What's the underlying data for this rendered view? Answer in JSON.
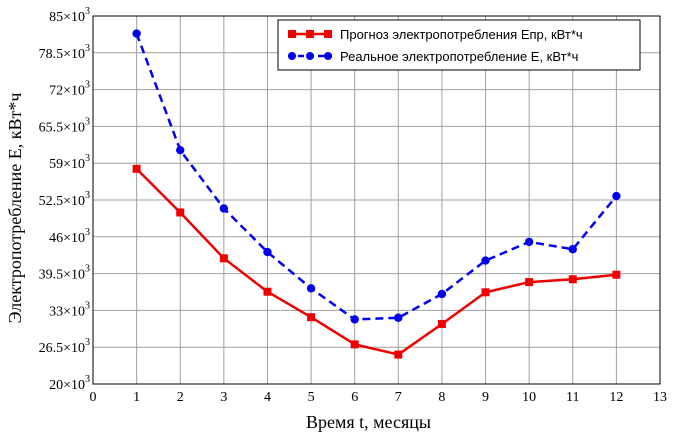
{
  "chart_data": {
    "type": "line",
    "xlabel": "Время t, месяцы",
    "ylabel": "Электропотребление E, кВт*ч",
    "xlim": [
      0,
      13
    ],
    "ylim": [
      20000,
      85000
    ],
    "x_ticks": [
      0,
      1,
      2,
      3,
      4,
      5,
      6,
      7,
      8,
      9,
      10,
      11,
      12,
      13
    ],
    "y_ticks": [
      {
        "value": 20000,
        "mantissa": "20×10",
        "exp": "3"
      },
      {
        "value": 26500,
        "mantissa": "26.5×10",
        "exp": "3"
      },
      {
        "value": 33000,
        "mantissa": "33×10",
        "exp": "3"
      },
      {
        "value": 39500,
        "mantissa": "39.5×10",
        "exp": "3"
      },
      {
        "value": 46000,
        "mantissa": "46×10",
        "exp": "3"
      },
      {
        "value": 52500,
        "mantissa": "52.5×10",
        "exp": "3"
      },
      {
        "value": 59000,
        "mantissa": "59×10",
        "exp": "3"
      },
      {
        "value": 65500,
        "mantissa": "65.5×10",
        "exp": "3"
      },
      {
        "value": 72000,
        "mantissa": "72×10",
        "exp": "3"
      },
      {
        "value": 78500,
        "mantissa": "78.5×10",
        "exp": "3"
      },
      {
        "value": 85000,
        "mantissa": "85×10",
        "exp": "3"
      }
    ],
    "grid": true,
    "legend_position": "top-right",
    "series": [
      {
        "name": "Прогноз электропотребления Епр, кВт*ч",
        "color": "#ee0000",
        "line_style": "solid",
        "marker": "square",
        "x": [
          1,
          2,
          3,
          4,
          5,
          6,
          7,
          8,
          9,
          10,
          11,
          12
        ],
        "y": [
          58000,
          50300,
          42200,
          36300,
          31800,
          27000,
          25200,
          30600,
          36200,
          38000,
          38500,
          39300
        ]
      },
      {
        "name": "Реальное электропотребление E, кВт*ч",
        "color": "#0000ee",
        "line_style": "dashed",
        "marker": "circle",
        "x": [
          1,
          2,
          3,
          4,
          5,
          6,
          7,
          8,
          9,
          10,
          11,
          12
        ],
        "y": [
          81900,
          61300,
          51000,
          43300,
          36900,
          31400,
          31700,
          35900,
          41800,
          45100,
          43800,
          53200
        ]
      }
    ]
  }
}
